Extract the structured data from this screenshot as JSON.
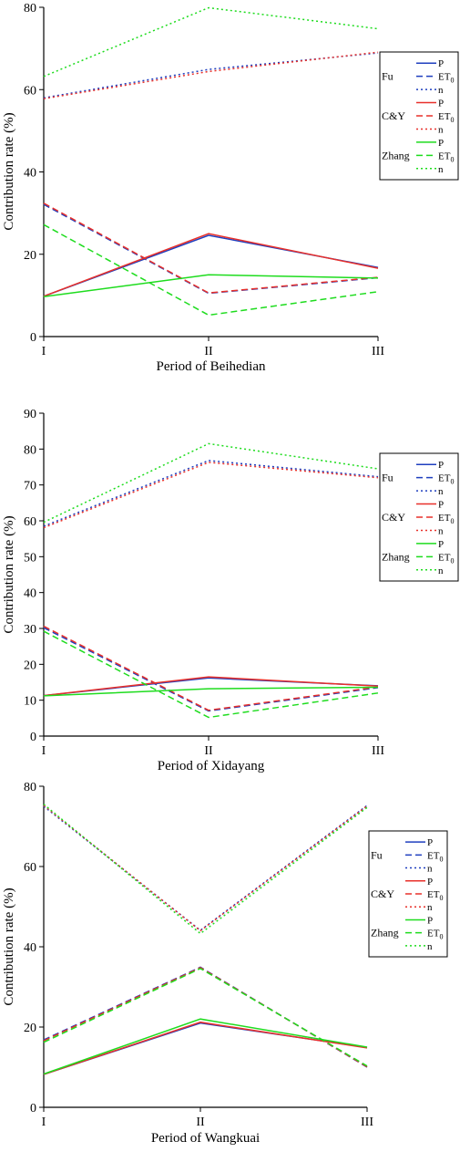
{
  "chart_data": [
    {
      "type": "line",
      "xlabel": "Period of Beihedian",
      "ylabel": "Contribution rate (%)",
      "categories": [
        "I",
        "II",
        "III"
      ],
      "ylim": [
        0,
        80
      ],
      "yticks": [
        "0",
        "20",
        "40",
        "60",
        "80"
      ],
      "legend_position": "top-right",
      "series": [
        {
          "group": "Fu",
          "name": "P",
          "values": [
            9.8,
            24.6,
            16.8
          ]
        },
        {
          "group": "Fu",
          "name": "ET0",
          "values": [
            32.1,
            10.5,
            14.3
          ]
        },
        {
          "group": "Fu",
          "name": "n",
          "values": [
            58.0,
            64.9,
            68.9
          ]
        },
        {
          "group": "C&Y",
          "name": "P",
          "values": [
            9.8,
            25.0,
            16.6
          ]
        },
        {
          "group": "C&Y",
          "name": "ET0",
          "values": [
            32.4,
            10.6,
            14.4
          ]
        },
        {
          "group": "C&Y",
          "name": "n",
          "values": [
            57.8,
            64.4,
            69.1
          ]
        },
        {
          "group": "Zhang",
          "name": "P",
          "values": [
            9.7,
            15.0,
            14.2
          ]
        },
        {
          "group": "Zhang",
          "name": "ET0",
          "values": [
            27.2,
            5.2,
            10.9
          ]
        },
        {
          "group": "Zhang",
          "name": "n",
          "values": [
            63.2,
            79.9,
            74.8
          ]
        }
      ]
    },
    {
      "type": "line",
      "xlabel": "Period of Xidayang",
      "ylabel": "Contribution rate (%)",
      "categories": [
        "I",
        "II",
        "III"
      ],
      "ylim": [
        0,
        90
      ],
      "yticks": [
        "0",
        "10",
        "20",
        "30",
        "40",
        "50",
        "60",
        "70",
        "80",
        "90"
      ],
      "legend_position": "top-right",
      "series": [
        {
          "group": "Fu",
          "name": "P",
          "values": [
            11.3,
            16.2,
            14.0
          ]
        },
        {
          "group": "Fu",
          "name": "ET0",
          "values": [
            30.2,
            7.0,
            13.5
          ]
        },
        {
          "group": "Fu",
          "name": "n",
          "values": [
            58.5,
            76.8,
            72.3
          ]
        },
        {
          "group": "C&Y",
          "name": "P",
          "values": [
            11.3,
            16.5,
            13.9
          ]
        },
        {
          "group": "C&Y",
          "name": "ET0",
          "values": [
            30.6,
            7.2,
            13.7
          ]
        },
        {
          "group": "C&Y",
          "name": "n",
          "values": [
            58.1,
            76.3,
            72.0
          ]
        },
        {
          "group": "Zhang",
          "name": "P",
          "values": [
            11.2,
            13.2,
            13.6
          ]
        },
        {
          "group": "Zhang",
          "name": "ET0",
          "values": [
            29.2,
            5.2,
            12.0
          ]
        },
        {
          "group": "Zhang",
          "name": "n",
          "values": [
            59.6,
            81.5,
            74.5
          ]
        }
      ]
    },
    {
      "type": "line",
      "xlabel": "Period of Wangkuai",
      "ylabel": "Contribution rate (%)",
      "categories": [
        "I",
        "II",
        "III"
      ],
      "ylim": [
        0,
        80
      ],
      "yticks": [
        "0",
        "20",
        "40",
        "60",
        "80"
      ],
      "legend_position": "top-right",
      "series": [
        {
          "group": "Fu",
          "name": "P",
          "values": [
            8.2,
            21.0,
            14.9
          ]
        },
        {
          "group": "Fu",
          "name": "ET0",
          "values": [
            16.8,
            34.9,
            10.0
          ]
        },
        {
          "group": "Fu",
          "name": "n",
          "values": [
            75.0,
            44.1,
            75.2
          ]
        },
        {
          "group": "C&Y",
          "name": "P",
          "values": [
            8.2,
            21.2,
            14.8
          ]
        },
        {
          "group": "C&Y",
          "name": "ET0",
          "values": [
            16.6,
            34.8,
            10.1
          ]
        },
        {
          "group": "C&Y",
          "name": "n",
          "values": [
            75.2,
            44.0,
            75.1
          ]
        },
        {
          "group": "Zhang",
          "name": "P",
          "values": [
            8.3,
            22.0,
            15.0
          ]
        },
        {
          "group": "Zhang",
          "name": "ET0",
          "values": [
            16.2,
            34.6,
            10.3
          ]
        },
        {
          "group": "Zhang",
          "name": "n",
          "values": [
            75.5,
            43.3,
            74.7
          ]
        }
      ]
    }
  ],
  "legend": {
    "groups": [
      "Fu",
      "C&Y",
      "Zhang"
    ],
    "items": [
      "P",
      "ET",
      "n"
    ],
    "et_subscript": "0"
  },
  "colors": {
    "Fu": "#1f3fbf",
    "C&Y": "#e8302a",
    "Zhang": "#1edc1e"
  },
  "styles": {
    "P": "solid",
    "ET0": "dashed",
    "n": "dotted"
  }
}
